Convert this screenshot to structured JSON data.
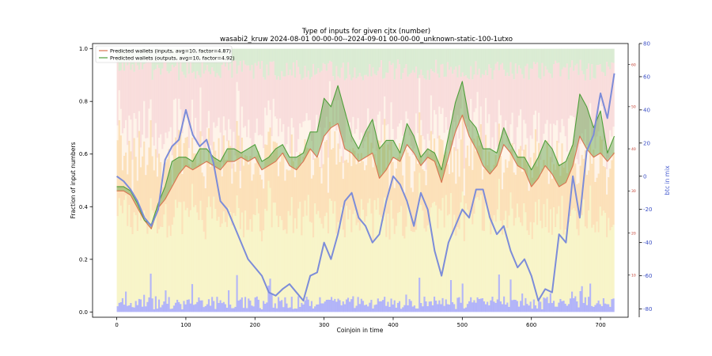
{
  "chart_data": {
    "type": "line",
    "title": "Type of inputs for given cjtx (number)",
    "subtitle": "wasabi2_kruw 2024-08-01 00-00-00--2024-09-01 00-00-00_unknown-static-100-1utxo",
    "xlabel": "Coinjoin in time",
    "ylabel": "Fraction of input numbers",
    "y2label": "btc in mix",
    "xlim": [
      -35,
      740
    ],
    "ylim": [
      -0.02,
      1.02
    ],
    "y2lim": [
      -85,
      80
    ],
    "y3lim": [
      0,
      65
    ],
    "x_ticks": [
      0,
      100,
      200,
      300,
      400,
      500,
      600,
      700
    ],
    "y_ticks": [
      0.0,
      0.2,
      0.4,
      0.6,
      0.8,
      1.0
    ],
    "y2_ticks": [
      -80,
      -60,
      -40,
      -20,
      0,
      20,
      40,
      60,
      80
    ],
    "y3_ticks": [
      10,
      20,
      30,
      40,
      50,
      60
    ],
    "grid": false,
    "legend_position": "top-left",
    "series": [
      {
        "name": "Predicted wallets (inputs, avg=10, factor=4.87)",
        "color": "#d9734f",
        "axis": "right-inner",
        "x": [
          0,
          10,
          20,
          30,
          40,
          50,
          60,
          70,
          80,
          90,
          100,
          110,
          120,
          130,
          140,
          150,
          160,
          170,
          180,
          190,
          200,
          210,
          220,
          230,
          240,
          250,
          260,
          270,
          280,
          290,
          300,
          310,
          320,
          330,
          340,
          350,
          360,
          370,
          380,
          390,
          400,
          410,
          420,
          430,
          440,
          450,
          460,
          470,
          480,
          490,
          500,
          510,
          520,
          530,
          540,
          550,
          560,
          570,
          580,
          590,
          600,
          610,
          620,
          630,
          640,
          650,
          660,
          670,
          680,
          690,
          700,
          710,
          720
        ],
        "values": [
          30,
          30,
          29,
          26,
          23,
          21,
          26,
          28,
          31,
          34,
          36,
          35,
          36,
          37,
          36,
          35,
          37,
          37,
          38,
          37,
          38,
          35,
          36,
          37,
          39,
          36,
          35,
          37,
          40,
          38,
          43,
          45,
          46,
          40,
          39,
          37,
          38,
          39,
          33,
          35,
          38,
          37,
          41,
          39,
          36,
          38,
          37,
          32,
          38,
          44,
          48,
          43,
          40,
          36,
          34,
          36,
          41,
          39,
          36,
          35,
          31,
          33,
          36,
          34,
          31,
          32,
          36,
          43,
          40,
          38,
          39,
          37,
          39
        ]
      },
      {
        "name": "Predicted wallets (outputs, avg=10, factor=4.92)",
        "color": "#4f9e3a",
        "axis": "right-inner",
        "x": [
          0,
          10,
          20,
          30,
          40,
          50,
          60,
          70,
          80,
          90,
          100,
          110,
          120,
          130,
          140,
          150,
          160,
          170,
          180,
          190,
          200,
          210,
          220,
          230,
          240,
          250,
          260,
          270,
          280,
          290,
          300,
          310,
          320,
          330,
          340,
          350,
          360,
          370,
          380,
          390,
          400,
          410,
          420,
          430,
          440,
          450,
          460,
          470,
          480,
          490,
          500,
          510,
          520,
          530,
          540,
          550,
          560,
          570,
          580,
          590,
          600,
          610,
          620,
          630,
          640,
          650,
          660,
          670,
          680,
          690,
          700,
          710,
          720
        ],
        "values": [
          31,
          31,
          30,
          27,
          23,
          22,
          27,
          31,
          37,
          38,
          38,
          37,
          40,
          40,
          38,
          37,
          40,
          40,
          39,
          40,
          41,
          37,
          38,
          40,
          41,
          38,
          38,
          39,
          44,
          44,
          52,
          50,
          55,
          49,
          43,
          40,
          44,
          47,
          40,
          42,
          42,
          39,
          46,
          43,
          38,
          40,
          39,
          35,
          43,
          51,
          56,
          47,
          45,
          40,
          40,
          39,
          45,
          41,
          38,
          38,
          35,
          38,
          42,
          40,
          36,
          37,
          41,
          53,
          50,
          45,
          49,
          39,
          43
        ]
      },
      {
        "name": "btc in mix",
        "color": "#7c8cd9",
        "axis": "right",
        "x": [
          0,
          10,
          20,
          30,
          40,
          50,
          60,
          70,
          80,
          90,
          100,
          110,
          120,
          130,
          140,
          150,
          160,
          170,
          180,
          190,
          200,
          210,
          220,
          230,
          240,
          250,
          260,
          270,
          280,
          290,
          300,
          310,
          320,
          330,
          340,
          350,
          360,
          370,
          380,
          390,
          400,
          410,
          420,
          430,
          440,
          450,
          460,
          470,
          480,
          490,
          500,
          510,
          520,
          530,
          540,
          550,
          560,
          570,
          580,
          590,
          600,
          610,
          620,
          630,
          640,
          650,
          660,
          670,
          680,
          690,
          700,
          710,
          720
        ],
        "values": [
          0,
          -3,
          -8,
          -15,
          -25,
          -30,
          -20,
          10,
          18,
          22,
          40,
          25,
          18,
          22,
          8,
          -15,
          -20,
          -30,
          -40,
          -50,
          -55,
          -60,
          -70,
          -72,
          -68,
          -65,
          -70,
          -75,
          -60,
          -58,
          -40,
          -50,
          -35,
          -15,
          -10,
          -25,
          -30,
          -40,
          -35,
          -15,
          0,
          -5,
          -15,
          -30,
          -10,
          -20,
          -45,
          -60,
          -40,
          -30,
          -20,
          -25,
          -8,
          -8,
          -25,
          -35,
          -30,
          -45,
          -55,
          -50,
          -60,
          -75,
          -68,
          -70,
          -35,
          -40,
          0,
          -25,
          15,
          25,
          50,
          35,
          62
        ]
      }
    ],
    "background_bands": [
      {
        "name": "low-value inputs",
        "color": "#f6f1b8"
      },
      {
        "name": "mid-value inputs",
        "color": "#fbdcae"
      },
      {
        "name": "upper-mid inputs",
        "color": "#fdf0e3"
      },
      {
        "name": "high-value inputs",
        "color": "#f7d3d2"
      },
      {
        "name": "top inputs",
        "color": "#cfe6c6"
      },
      {
        "name": "base noise",
        "color": "#9b9ef5"
      }
    ]
  }
}
